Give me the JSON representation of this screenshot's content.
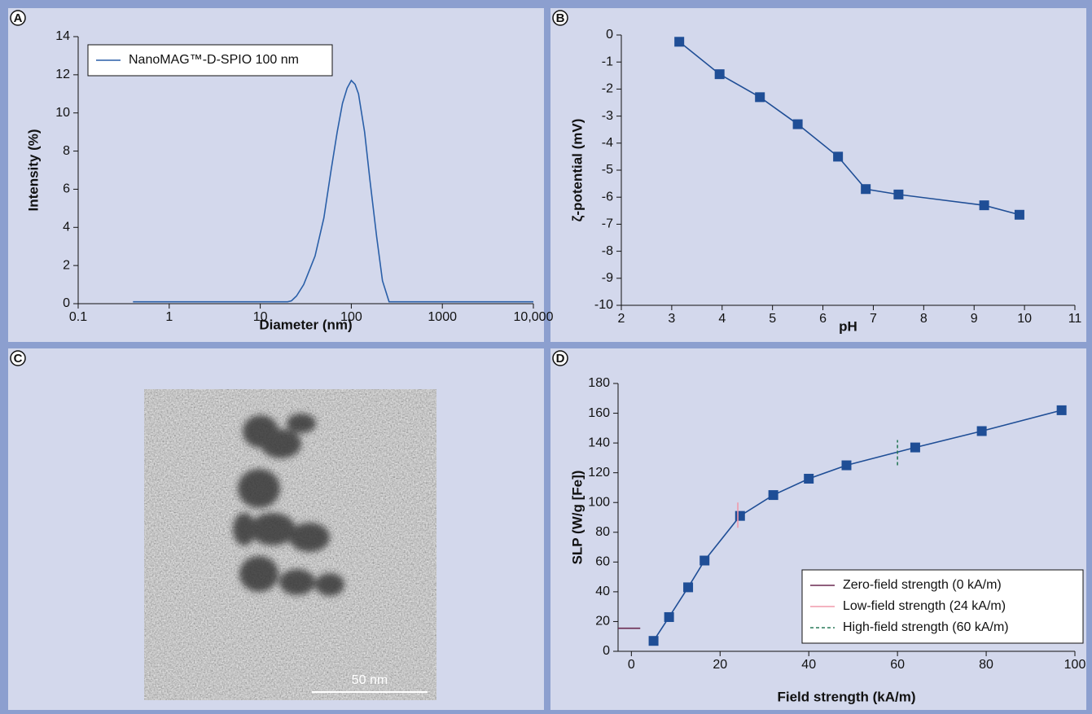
{
  "panel_labels": [
    "A",
    "B",
    "C",
    "D"
  ],
  "image": {
    "scale_bar": "50 nm"
  },
  "chart_data": [
    {
      "type": "line",
      "xscale": "log",
      "xlabel": "Diameter (nm)",
      "ylabel": "Intensity (%)",
      "xlim": [
        0.1,
        10000
      ],
      "xticks": [
        0.1,
        1,
        10,
        100,
        1000,
        {
          "value": 10000,
          "label": "10,000"
        }
      ],
      "ylim": [
        0,
        14
      ],
      "yticks": [
        0,
        2,
        4,
        6,
        8,
        10,
        12,
        14
      ],
      "legend": "upper left",
      "series": [
        {
          "name": "NanoMAG™-D-SPIO 100 nm",
          "color": "#2a5fa8",
          "markers": false,
          "x": [
            0.4,
            20,
            22,
            25,
            30,
            40,
            50,
            60,
            70,
            80,
            90,
            100,
            110,
            120,
            140,
            160,
            190,
            220,
            260,
            10000
          ],
          "values": [
            0.1,
            0.1,
            0.15,
            0.4,
            1,
            2.5,
            4.5,
            7,
            9,
            10.5,
            11.3,
            11.7,
            11.5,
            11,
            9,
            6.5,
            3.5,
            1.2,
            0.1,
            0.1
          ]
        }
      ]
    },
    {
      "type": "line",
      "xlabel": "pH",
      "ylabel": "ζ-potential (mV)",
      "xlim": [
        2,
        11
      ],
      "xticks": [
        2,
        3,
        4,
        5,
        6,
        7,
        8,
        9,
        10,
        11
      ],
      "ylim": [
        -10,
        0
      ],
      "yticks": [
        0,
        -1,
        -2,
        -3,
        -4,
        -5,
        -6,
        -7,
        -8,
        -9,
        -10
      ],
      "series": [
        {
          "color": "#1f4e96",
          "markers": true,
          "x": [
            3.15,
            3.95,
            4.75,
            5.5,
            6.3,
            6.85,
            7.5,
            9.2,
            9.9
          ],
          "values": [
            -0.25,
            -1.45,
            -2.3,
            -3.3,
            -4.5,
            -5.7,
            -5.9,
            -6.3,
            -6.65
          ]
        }
      ]
    },
    {
      "type": "line",
      "xlabel": "Field strength (kA/m)",
      "ylabel": "SLP (W/g [Fe])",
      "xlim": [
        -3,
        100
      ],
      "xticks": [
        0,
        20,
        40,
        60,
        80,
        100
      ],
      "ylim": [
        0,
        180
      ],
      "yticks": [
        0,
        20,
        40,
        60,
        80,
        100,
        120,
        140,
        160,
        180
      ],
      "legend": "lower right",
      "series": [
        {
          "color": "#1f4e96",
          "markers": true,
          "x": [
            5,
            8.5,
            12.8,
            16.5,
            24.5,
            32,
            40,
            48.5,
            64,
            79,
            97
          ],
          "values": [
            7,
            23,
            43,
            61,
            91,
            105,
            116,
            125,
            137,
            148,
            162
          ]
        },
        {
          "name": "Zero-field strength (0 kA/m)",
          "color": "#6a2a50",
          "markers": false,
          "x": [
            -3,
            2
          ],
          "values": [
            15.5,
            15.5
          ]
        },
        {
          "name": "Low-field strength (24 kA/m)",
          "color": "#f09aac",
          "markers": false,
          "x": [
            24,
            24
          ],
          "values": [
            83,
            100
          ]
        },
        {
          "name": "High-field strength (60 kA/m)",
          "color": "#2a7a5a",
          "markers": false,
          "dashed": true,
          "x": [
            60,
            60
          ],
          "values": [
            125,
            142
          ]
        }
      ]
    }
  ]
}
